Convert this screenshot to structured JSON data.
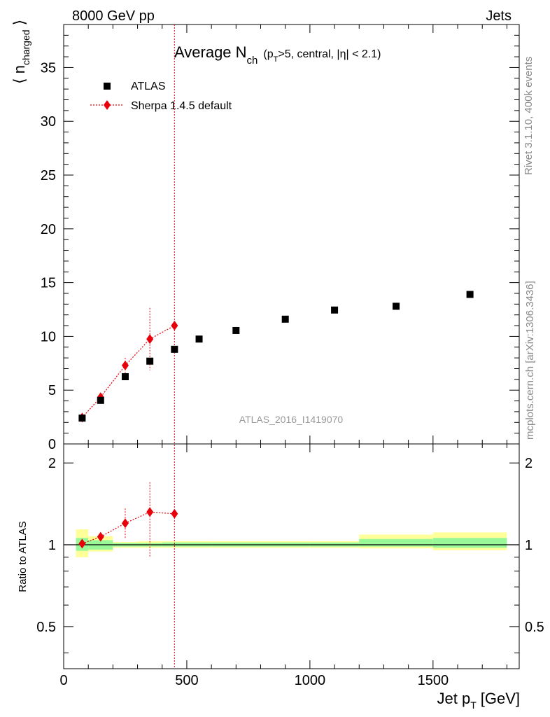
{
  "header": {
    "left": "8000 GeV pp",
    "right": "Jets"
  },
  "title": {
    "main": "Average N",
    "main_sub": "ch",
    "cond_open": "(p",
    "cond_sub": "T",
    "cond_rest": ">5, central, |η| < 2.1)"
  },
  "side_labels": {
    "rivet": "Rivet 3.1.10,  400k events",
    "mcplots": "mcplots.cern.ch [arXiv:1306.3436]"
  },
  "analysis_id": "ATLAS_2016_I1419070",
  "legend": {
    "placement": "top-left",
    "data_label": "ATLAS",
    "mc_label": "Sherpa 1.4.5 default"
  },
  "axes": {
    "y_main_label": "n",
    "y_main_sub": "charged",
    "y_ratio_label": "Ratio to ATLAS",
    "x_label": "Jet p",
    "x_sub": "T",
    "x_unit": "[GeV]",
    "x_ticks": [
      "0",
      "500",
      "1000",
      "1500"
    ],
    "y_main_ticks": [
      "0",
      "5",
      "10",
      "15",
      "20",
      "25",
      "30",
      "35"
    ],
    "y_ratio_ticks": [
      "0.5",
      "1",
      "2"
    ]
  },
  "colors": {
    "data": "#000000",
    "mc": "#e8000b",
    "band_inner": "#99f999",
    "band_outer": "#ffff99",
    "text_grey": "#888888"
  },
  "chart_data": [
    {
      "type": "scatter",
      "panel": "main",
      "xlabel": "Jet p_T [GeV]",
      "ylabel": "⟨n_charged⟩",
      "xlim": [
        0,
        1850
      ],
      "ylim": [
        0,
        39
      ],
      "series": [
        {
          "name": "ATLAS",
          "x": [
            75,
            150,
            250,
            350,
            450,
            550,
            700,
            900,
            1100,
            1350,
            1650
          ],
          "y": [
            2.4,
            4.05,
            6.25,
            7.7,
            8.8,
            9.75,
            10.55,
            11.6,
            12.45,
            12.8,
            13.9
          ],
          "xerr": [
            25,
            50,
            50,
            50,
            50,
            50,
            100,
            100,
            100,
            150,
            150
          ]
        },
        {
          "name": "Sherpa 1.4.5 default",
          "x": [
            75,
            150,
            250,
            350,
            450
          ],
          "y": [
            2.45,
            4.35,
            7.3,
            9.75,
            11.0
          ],
          "yerr": [
            0.1,
            0.2,
            0.7,
            2.9,
            0.3
          ]
        }
      ],
      "vline_x": 450
    },
    {
      "type": "line",
      "panel": "ratio",
      "ylabel": "Ratio to ATLAS",
      "xlim": [
        0,
        1850
      ],
      "ylim": [
        0.35,
        2.35
      ],
      "y_scale": "log",
      "band_edges": [
        50,
        100,
        200,
        300,
        400,
        500,
        600,
        800,
        1000,
        1200,
        1500,
        1800
      ],
      "band_inner": [
        [
          0.95,
          1.06
        ],
        [
          0.96,
          1.04
        ],
        [
          0.985,
          1.015
        ],
        [
          0.985,
          1.015
        ],
        [
          0.985,
          1.02
        ],
        [
          0.985,
          1.02
        ],
        [
          0.985,
          1.02
        ],
        [
          0.985,
          1.02
        ],
        [
          0.985,
          1.02
        ],
        [
          0.985,
          1.05
        ],
        [
          0.975,
          1.06
        ]
      ],
      "band_outer": [
        [
          0.9,
          1.14
        ],
        [
          0.945,
          1.075
        ],
        [
          0.975,
          1.025
        ],
        [
          0.975,
          1.03
        ],
        [
          0.975,
          1.03
        ],
        [
          0.975,
          1.03
        ],
        [
          0.975,
          1.03
        ],
        [
          0.975,
          1.03
        ],
        [
          0.975,
          1.03
        ],
        [
          0.97,
          1.09
        ],
        [
          0.955,
          1.11
        ]
      ],
      "series": [
        {
          "name": "Sherpa 1.4.5 default",
          "x": [
            75,
            150,
            250,
            350,
            450
          ],
          "y": [
            1.01,
            1.07,
            1.2,
            1.32,
            1.3
          ],
          "yerr_low": [
            0.02,
            0.02,
            0.15,
            0.42,
            0.02
          ],
          "yerr_high": [
            0.02,
            0.02,
            0.16,
            0.38,
            0.02
          ]
        }
      ],
      "vline_x": 450
    }
  ]
}
